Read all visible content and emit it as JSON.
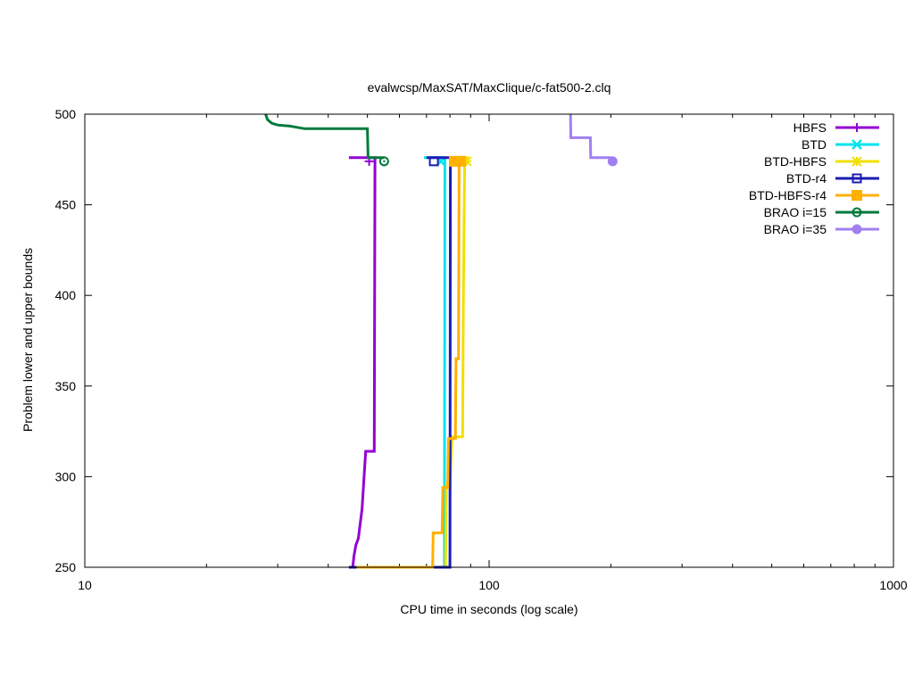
{
  "chart_data": {
    "type": "line",
    "title": "evalwcsp/MaxSAT/MaxClique/c-fat500-2.clq",
    "xlabel": "CPU time in seconds (log scale)",
    "ylabel": "Problem lower and upper bounds",
    "x_scale": "log",
    "xlim": [
      10,
      1000
    ],
    "ylim": [
      250,
      500
    ],
    "x_ticks": [
      10,
      100,
      1000
    ],
    "y_ticks": [
      250,
      300,
      350,
      400,
      450,
      500
    ],
    "legend_position": "top-right",
    "series": [
      {
        "name": "HBFS",
        "color": "#9400d3",
        "marker": "plus",
        "upper": [
          [
            45,
            476
          ],
          [
            52.5,
            476
          ]
        ],
        "lower": [
          [
            46,
            250
          ],
          [
            46.3,
            256
          ],
          [
            46.8,
            262
          ],
          [
            47.5,
            266
          ],
          [
            48.5,
            282
          ],
          [
            49.5,
            314
          ],
          [
            52,
            314
          ],
          [
            52.2,
            476
          ]
        ],
        "markers": [
          [
            50.5,
            474
          ]
        ]
      },
      {
        "name": "BTD",
        "color": "#00e5ee",
        "marker": "x",
        "upper": [
          [
            69,
            476
          ],
          [
            78,
            476
          ]
        ],
        "lower": [
          [
            77.5,
            250
          ],
          [
            77.7,
            476
          ]
        ],
        "markers": [
          [
            76,
            474
          ]
        ]
      },
      {
        "name": "BTD-HBFS",
        "color": "#f0e000",
        "marker": "star",
        "upper": [
          [
            80,
            476
          ],
          [
            89,
            476
          ]
        ],
        "lower": [
          [
            75,
            250
          ],
          [
            78,
            250
          ],
          [
            78.4,
            296
          ],
          [
            80,
            296
          ],
          [
            81,
            322
          ],
          [
            86,
            322
          ],
          [
            86.4,
            400
          ],
          [
            87,
            476
          ]
        ],
        "markers": [
          [
            88,
            474
          ]
        ]
      },
      {
        "name": "BTD-r4",
        "color": "#1c1cb4",
        "marker": "square-open",
        "upper": [
          [
            70,
            476
          ],
          [
            84,
            476
          ]
        ],
        "lower": [
          [
            45,
            250
          ],
          [
            80,
            250
          ],
          [
            80.2,
            476
          ]
        ],
        "markers": [
          [
            73,
            474
          ]
        ]
      },
      {
        "name": "BTD-HBFS-r4",
        "color": "#ffb000",
        "marker": "square-filled",
        "upper": [
          [
            80,
            476
          ],
          [
            86,
            476
          ]
        ],
        "lower": [
          [
            47,
            250
          ],
          [
            72.5,
            250
          ],
          [
            72.7,
            269
          ],
          [
            76.5,
            269
          ],
          [
            76.8,
            294
          ],
          [
            79,
            294
          ],
          [
            79.3,
            321
          ],
          [
            82.5,
            321
          ],
          [
            82.8,
            365
          ],
          [
            84,
            365
          ],
          [
            84.3,
            476
          ]
        ],
        "markers": [
          [
            82,
            474
          ],
          [
            85,
            474
          ]
        ]
      },
      {
        "name": "BRAO i=15",
        "color": "#007a3d",
        "marker": "circle-open",
        "upper": [
          [
            28,
            500
          ],
          [
            28.3,
            497
          ],
          [
            29,
            495
          ],
          [
            30,
            494
          ],
          [
            32,
            493.5
          ],
          [
            35,
            492
          ],
          [
            50,
            492
          ],
          [
            50.2,
            476
          ],
          [
            55,
            476
          ]
        ],
        "markers": [
          [
            55,
            474
          ]
        ]
      },
      {
        "name": "BRAO i=35",
        "color": "#a080f0",
        "marker": "circle-filled",
        "upper": [
          [
            159,
            500
          ],
          [
            159.2,
            487
          ],
          [
            178,
            487
          ],
          [
            178.3,
            476
          ],
          [
            202,
            476
          ]
        ],
        "markers": [
          [
            202,
            474
          ]
        ]
      }
    ]
  }
}
